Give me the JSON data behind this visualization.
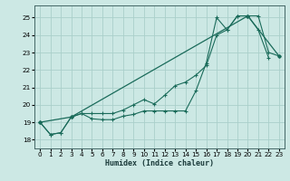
{
  "xlabel": "Humidex (Indice chaleur)",
  "bg_color": "#cce8e4",
  "grid_color": "#aacfca",
  "line_color": "#1a6b5a",
  "xlim": [
    -0.5,
    23.5
  ],
  "ylim": [
    17.5,
    25.7
  ],
  "xticks": [
    0,
    1,
    2,
    3,
    4,
    5,
    6,
    7,
    8,
    9,
    10,
    11,
    12,
    13,
    14,
    15,
    16,
    17,
    18,
    19,
    20,
    21,
    22,
    23
  ],
  "yticks": [
    18,
    19,
    20,
    21,
    22,
    23,
    24,
    25
  ],
  "line1_x": [
    0,
    1,
    2,
    3,
    4,
    5,
    6,
    7,
    8,
    9,
    10,
    11,
    12,
    13,
    14,
    15,
    16,
    17,
    18,
    19,
    20,
    21,
    22
  ],
  "line1_y": [
    19.0,
    18.3,
    18.4,
    19.3,
    19.5,
    19.2,
    19.15,
    19.15,
    19.35,
    19.45,
    19.65,
    19.65,
    19.65,
    19.65,
    19.65,
    20.8,
    22.4,
    25.0,
    24.3,
    25.1,
    25.1,
    24.3,
    22.7
  ],
  "line2_x": [
    0,
    1,
    2,
    3,
    4,
    5,
    6,
    7,
    8,
    9,
    10,
    11,
    12,
    13,
    14,
    15,
    16,
    17,
    18,
    19,
    20,
    21,
    22,
    23
  ],
  "line2_y": [
    19.0,
    18.3,
    18.4,
    19.3,
    19.5,
    19.5,
    19.5,
    19.5,
    19.7,
    20.0,
    20.3,
    20.05,
    20.55,
    21.1,
    21.3,
    21.7,
    22.25,
    24.0,
    24.3,
    25.1,
    25.1,
    25.1,
    23.0,
    22.8
  ],
  "line3_x": [
    0,
    3,
    20,
    23
  ],
  "line3_y": [
    19.0,
    19.3,
    25.1,
    22.8
  ]
}
